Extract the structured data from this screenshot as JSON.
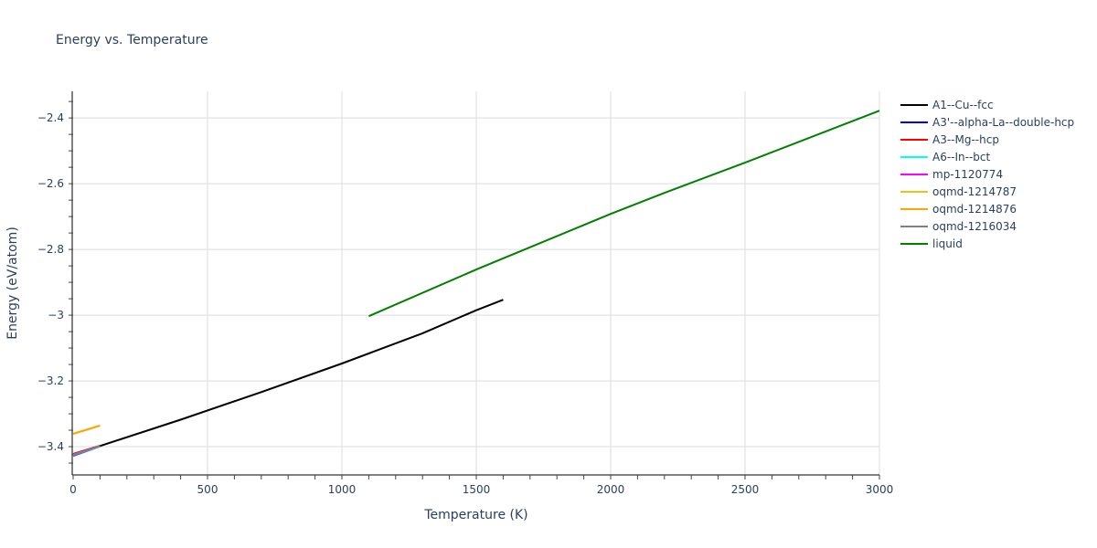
{
  "title": "Energy vs. Temperature",
  "chart_data": {
    "type": "line",
    "title": "Energy vs. Temperature",
    "xlabel": "Temperature (K)",
    "ylabel": "Energy (eV/atom)",
    "xlim": [
      0,
      3000
    ],
    "ylim": [
      -3.486,
      -2.319
    ],
    "xticks": [
      0,
      500,
      1000,
      1500,
      2000,
      2500,
      3000
    ],
    "xtick_labels": [
      "0",
      "500",
      "1000",
      "1500",
      "2000",
      "2500",
      "3000"
    ],
    "yticks": [
      -2.4,
      -2.6,
      -2.8,
      -3,
      -3.2,
      -3.4
    ],
    "ytick_labels": [
      "−2.4",
      "−2.6",
      "−2.8",
      "−3",
      "−3.2",
      "−3.4"
    ],
    "grid": true,
    "legend_position": "right",
    "series": [
      {
        "name": "A1--Cu--fcc",
        "color": "#000000",
        "x": [
          0,
          100,
          400,
          700,
          1000,
          1300,
          1500,
          1600
        ],
        "y": [
          -3.425,
          -3.398,
          -3.318,
          -3.234,
          -3.147,
          -3.055,
          -2.985,
          -2.953
        ]
      },
      {
        "name": "A3'--alpha-La--double-hcp",
        "color": "#0000ff",
        "x": [
          0,
          100
        ],
        "y": [
          -3.428,
          -3.399
        ]
      },
      {
        "name": "A3--Mg--hcp",
        "color": "#ff0000",
        "x": [
          0,
          100
        ],
        "y": [
          -3.422,
          -3.397
        ]
      },
      {
        "name": "A6--In--bct",
        "color": "#00ffff",
        "x": [
          0,
          100
        ],
        "y": [
          -3.426,
          -3.399
        ]
      },
      {
        "name": "mp-1120774",
        "color": "#ff00ff",
        "x": [
          0,
          100
        ],
        "y": [
          -3.425,
          -3.398
        ]
      },
      {
        "name": "oqmd-1214787",
        "color": "#e6c619",
        "x": [
          0,
          100
        ],
        "y": [
          -3.361,
          -3.336
        ]
      },
      {
        "name": "oqmd-1214876",
        "color": "#ffa500",
        "x": [
          0,
          100
        ],
        "y": [
          -3.361,
          -3.336
        ]
      },
      {
        "name": "oqmd-1216034",
        "color": "#808080",
        "x": [
          0,
          100
        ],
        "y": [
          -3.425,
          -3.398
        ]
      },
      {
        "name": "liquid",
        "color": "#008000",
        "x": [
          1100,
          1500,
          2000,
          2200,
          2500,
          3000
        ],
        "y": [
          -3.003,
          -2.861,
          -2.692,
          -2.628,
          -2.536,
          -2.378
        ]
      }
    ]
  }
}
